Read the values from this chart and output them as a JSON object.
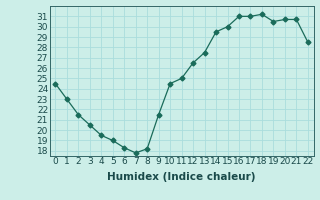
{
  "x": [
    0,
    1,
    2,
    3,
    4,
    5,
    6,
    7,
    8,
    9,
    10,
    11,
    12,
    13,
    14,
    15,
    16,
    17,
    18,
    19,
    20,
    21,
    22
  ],
  "y": [
    24.5,
    23.0,
    21.5,
    20.5,
    19.5,
    19.0,
    18.3,
    17.8,
    18.2,
    21.5,
    24.5,
    25.0,
    26.5,
    27.5,
    29.5,
    30.0,
    31.0,
    31.0,
    31.2,
    30.5,
    30.7,
    30.7,
    28.5
  ],
  "xlabel": "Humidex (Indice chaleur)",
  "xlim": [
    -0.5,
    22.5
  ],
  "ylim": [
    17.5,
    32.0
  ],
  "yticks": [
    18,
    19,
    20,
    21,
    22,
    23,
    24,
    25,
    26,
    27,
    28,
    29,
    30,
    31
  ],
  "xticks": [
    0,
    1,
    2,
    3,
    4,
    5,
    6,
    7,
    8,
    9,
    10,
    11,
    12,
    13,
    14,
    15,
    16,
    17,
    18,
    19,
    20,
    21,
    22
  ],
  "line_color": "#1a6b5a",
  "marker": "D",
  "marker_size": 2.5,
  "bg_color": "#cceee8",
  "grid_color": "#aadddd",
  "xlabel_fontsize": 7.5,
  "tick_fontsize": 6.5
}
